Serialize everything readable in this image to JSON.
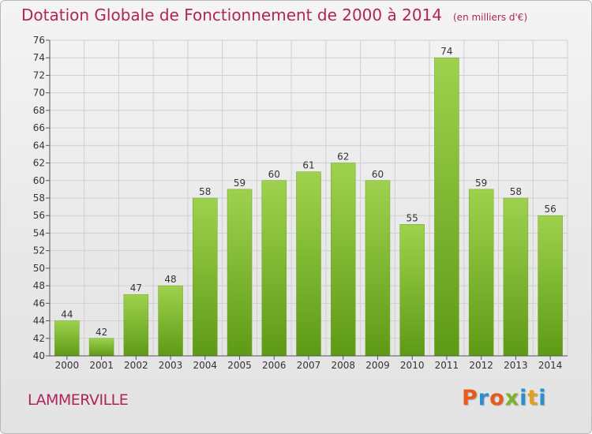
{
  "header": {
    "title": "Dotation Globale de Fonctionnement de 2000 à 2014",
    "subtitle": "(en milliers d'€)"
  },
  "footer": {
    "commune": "LAMMERVILLE",
    "logo_text": "Proxiti",
    "logo_colors": [
      "#e85a1e",
      "#2a8fd0",
      "#e85a1e",
      "#7ab22a",
      "#2a8fd0",
      "#e0a020",
      "#2a8fd0"
    ]
  },
  "chart_data": {
    "type": "bar",
    "categories": [
      "2000",
      "2001",
      "2002",
      "2003",
      "2004",
      "2005",
      "2006",
      "2007",
      "2008",
      "2009",
      "2010",
      "2011",
      "2012",
      "2013",
      "2014"
    ],
    "values": [
      44,
      42,
      47,
      48,
      58,
      59,
      60,
      61,
      62,
      60,
      55,
      74,
      59,
      58,
      56
    ],
    "ylim": [
      40,
      76
    ],
    "yticks": [
      40,
      42,
      44,
      46,
      48,
      50,
      52,
      54,
      56,
      58,
      60,
      62,
      64,
      66,
      68,
      70,
      72,
      74,
      76
    ],
    "grid": true,
    "data_labels": true,
    "bar_color_top": "#9ed24e",
    "bar_color_bottom": "#5e9a16"
  }
}
